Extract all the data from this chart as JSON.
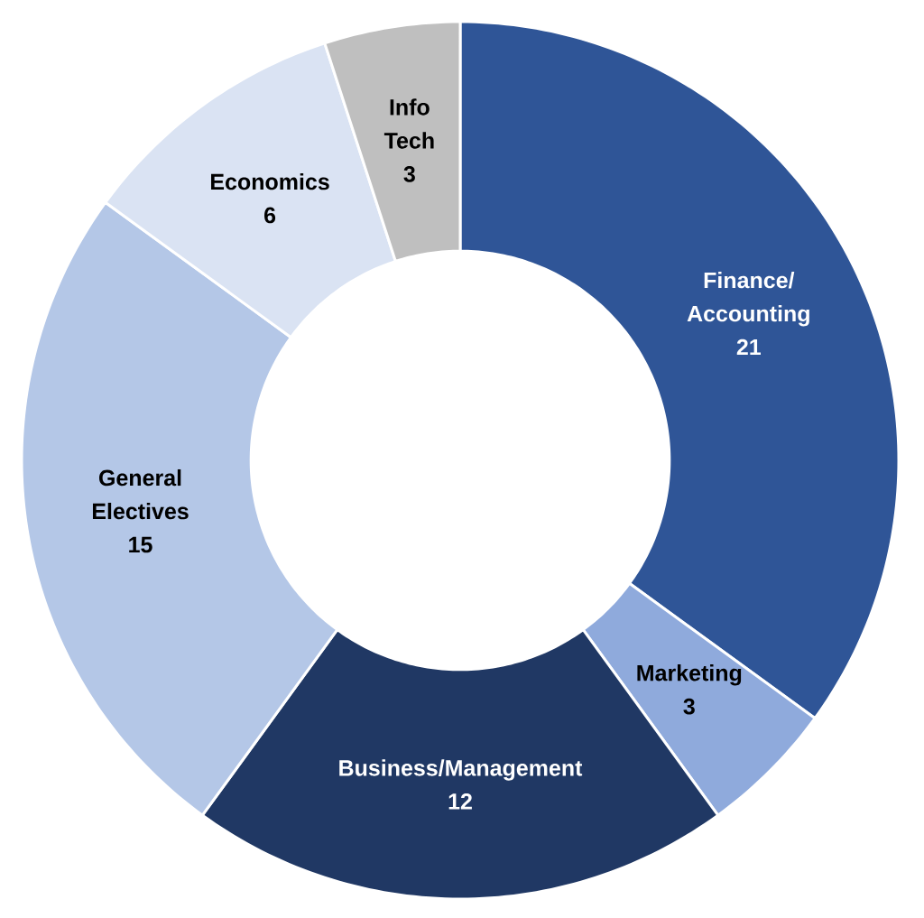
{
  "chart_data": {
    "type": "donut",
    "categories": [
      "Finance/Accounting",
      "Marketing",
      "Business/Management",
      "General Electives",
      "Economics",
      "Info Tech"
    ],
    "values": [
      21,
      3,
      12,
      15,
      6,
      3
    ],
    "colors": [
      "#2f5597",
      "#8faadc",
      "#203864",
      "#b4c7e7",
      "#dae3f3",
      "#bfbfbf"
    ],
    "data_labels": true
  }
}
